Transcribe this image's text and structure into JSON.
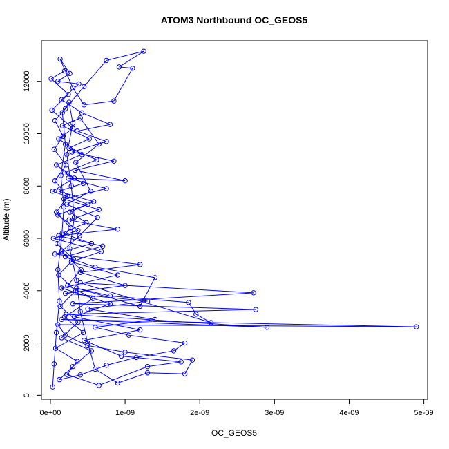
{
  "chart_data": {
    "type": "line",
    "title": "ATOM3 Northbound OC_GEOS5",
    "xlabel": "OC_GEOS5",
    "ylabel": "Altitude (m)",
    "xlim": [
      -1.2e-10,
      5.05e-09
    ],
    "ylim": [
      -150,
      13550
    ],
    "x_ticks": [
      0,
      1e-09,
      2e-09,
      3e-09,
      4e-09,
      5e-09
    ],
    "x_tick_labels": [
      "0e+00",
      "1e-09",
      "2e-09",
      "3e-09",
      "4e-09",
      "5e-09"
    ],
    "y_ticks": [
      0,
      2000,
      4000,
      6000,
      8000,
      10000,
      12000
    ],
    "y_tick_labels": [
      "0",
      "2000",
      "4000",
      "6000",
      "8000",
      "10000",
      "12000"
    ],
    "grid": false,
    "legend": "none",
    "series_color": "#0000ff",
    "marker": "open-circle",
    "series": [
      {
        "points": [
          [
            3e-11,
            320
          ],
          [
            5e-11,
            1200
          ],
          [
            8e-11,
            2400
          ],
          [
            1.2e-10,
            3600
          ],
          [
            1e-10,
            4800
          ],
          [
            1.5e-10,
            6000
          ],
          [
            1.8e-10,
            7200
          ],
          [
            1.4e-10,
            8400
          ],
          [
            2e-10,
            9600
          ],
          [
            1.6e-10,
            10800
          ],
          [
            2.5e-10,
            11200
          ],
          [
            3e-10,
            10400
          ],
          [
            2.2e-10,
            9200
          ],
          [
            2.8e-10,
            8000
          ],
          [
            3.2e-10,
            6800
          ],
          [
            2.6e-10,
            5600
          ],
          [
            3.5e-10,
            4400
          ],
          [
            4e-10,
            3200
          ],
          [
            5e-10,
            2000
          ],
          [
            6e-10,
            1000
          ],
          [
            9e-10,
            470
          ],
          [
            1.3e-09,
            860
          ],
          [
            1.8e-09,
            820
          ],
          [
            1.9e-09,
            1350
          ],
          [
            1e-09,
            1650
          ],
          [
            5e-10,
            1900
          ],
          [
            2e-10,
            2300
          ],
          [
            1e-10,
            2700
          ],
          [
            4.9e-09,
            2620
          ],
          [
            1.5e-10,
            2900
          ],
          [
            2.9e-09,
            2600
          ],
          [
            2.1e-10,
            3100
          ],
          [
            2.75e-09,
            3280
          ],
          [
            3e-10,
            3500
          ],
          [
            2.72e-09,
            3920
          ],
          [
            4e-10,
            4300
          ],
          [
            2.15e-09,
            2780
          ],
          [
            1.95e-09,
            3100
          ],
          [
            1.85e-09,
            3550
          ],
          [
            8e-10,
            3800
          ],
          [
            3.5e-10,
            4100
          ],
          [
            1.2e-09,
            3400
          ],
          [
            1.4e-09,
            4500
          ],
          [
            6e-10,
            4900
          ],
          [
            2e-10,
            5300
          ],
          [
            7e-10,
            5700
          ],
          [
            1.1e-10,
            6100
          ],
          [
            9e-10,
            6350
          ],
          [
            2.5e-10,
            6700
          ],
          [
            6.5e-10,
            7100
          ],
          [
            1.8e-10,
            7500
          ],
          [
            7.5e-10,
            7900
          ],
          [
            2.4e-10,
            8300
          ],
          [
            1e-09,
            8200
          ],
          [
            3.3e-10,
            8600
          ],
          [
            8.5e-10,
            8950
          ],
          [
            2.9e-10,
            9300
          ],
          [
            7.5e-10,
            9700
          ],
          [
            3.6e-10,
            10100
          ],
          [
            8e-10,
            10350
          ],
          [
            4.2e-10,
            10800
          ],
          [
            1.5e-10,
            11300
          ],
          [
            3.8e-10,
            11900
          ],
          [
            1e-10,
            12000
          ],
          [
            2.6e-10,
            12300
          ],
          [
            1.3e-10,
            12850
          ],
          [
            3e-10,
            11750
          ],
          [
            4.5e-10,
            11100
          ],
          [
            8.5e-10,
            11250
          ],
          [
            1.1e-09,
            12500
          ],
          [
            9.2e-10,
            12550
          ],
          [
            1.25e-09,
            13150
          ],
          [
            7.5e-10,
            12800
          ],
          [
            4.5e-10,
            11800
          ],
          [
            2e-10,
            10950
          ],
          [
            6e-11,
            10500
          ],
          [
            1.7e-10,
            9900
          ],
          [
            5e-11,
            9400
          ],
          [
            2.1e-10,
            8800
          ],
          [
            6e-11,
            8200
          ],
          [
            2.3e-10,
            7600
          ],
          [
            8e-11,
            7000
          ],
          [
            2.7e-10,
            6400
          ],
          [
            9e-11,
            5800
          ],
          [
            3.1e-10,
            5200
          ],
          [
            1.1e-10,
            4600
          ],
          [
            3.4e-10,
            4000
          ],
          [
            1.3e-10,
            3400
          ],
          [
            3.7e-10,
            2800
          ],
          [
            1.5e-10,
            2200
          ],
          [
            5.5e-10,
            1700
          ],
          [
            3e-10,
            1100
          ],
          [
            1.2e-10,
            600
          ],
          [
            4e-10,
            780
          ],
          [
            7.5e-10,
            1150
          ],
          [
            1.15e-09,
            1450
          ],
          [
            1.65e-09,
            1700
          ],
          [
            1.8e-09,
            2000
          ],
          [
            1.05e-09,
            2300
          ],
          [
            6e-10,
            2600
          ],
          [
            1.4e-09,
            2900
          ],
          [
            5e-10,
            3300
          ],
          [
            1.3e-09,
            3600
          ],
          [
            2e-10,
            3900
          ],
          [
            1e-09,
            4200
          ],
          [
            4e-10,
            4700
          ],
          [
            1.2e-09,
            5000
          ],
          [
            6e-11,
            5400
          ],
          [
            5.5e-10,
            5800
          ],
          [
            1.6e-10,
            6200
          ],
          [
            4.8e-10,
            6600
          ],
          [
            2.6e-10,
            7000
          ],
          [
            5.8e-10,
            7400
          ],
          [
            1.1e-10,
            7800
          ],
          [
            4.4e-10,
            8100
          ],
          [
            1.9e-10,
            8500
          ],
          [
            6.2e-10,
            9000
          ],
          [
            2.5e-10,
            9450
          ],
          [
            5.2e-10,
            9800
          ],
          [
            1.6e-10,
            10300
          ],
          [
            4e-10,
            10600
          ],
          [
            6.5e-10,
            9600
          ],
          [
            3.4e-10,
            8900
          ],
          [
            5.4e-10,
            7800
          ],
          [
            2.2e-10,
            7300
          ],
          [
            6.3e-10,
            6800
          ],
          [
            3.9e-10,
            6100
          ],
          [
            1.5e-10,
            5500
          ],
          [
            4.1e-10,
            4800
          ],
          [
            2.3e-10,
            4200
          ],
          [
            5.7e-10,
            3700
          ],
          [
            1.9e-10,
            3000
          ],
          [
            4.4e-10,
            2400
          ],
          [
            7e-11,
            1800
          ],
          [
            3.6e-10,
            1300
          ],
          [
            2.2e-10,
            800
          ],
          [
            6.5e-10,
            380
          ],
          [
            1.3e-09,
            1100
          ],
          [
            1.75e-09,
            1280
          ],
          [
            9.5e-10,
            1500
          ],
          [
            4.5e-10,
            2100
          ],
          [
            1.2e-09,
            2500
          ],
          [
            3.2e-10,
            3000
          ],
          [
            8e-10,
            3500
          ],
          [
            1.5e-10,
            4100
          ],
          [
            9e-10,
            4600
          ],
          [
            2.8e-10,
            5100
          ],
          [
            6.8e-10,
            5500
          ],
          [
            4e-11,
            6000
          ],
          [
            3.7e-10,
            6300
          ],
          [
            1e-10,
            6900
          ],
          [
            5e-10,
            7300
          ],
          [
            3e-11,
            7800
          ],
          [
            3.2e-10,
            8300
          ],
          [
            8e-11,
            8800
          ],
          [
            4.2e-10,
            9200
          ],
          [
            1.1e-10,
            9800
          ],
          [
            3e-10,
            10200
          ],
          [
            2e-11,
            10900
          ],
          [
            2.4e-10,
            11500
          ],
          [
            1e-11,
            12100
          ],
          [
            1.9e-10,
            12400
          ]
        ]
      }
    ]
  }
}
